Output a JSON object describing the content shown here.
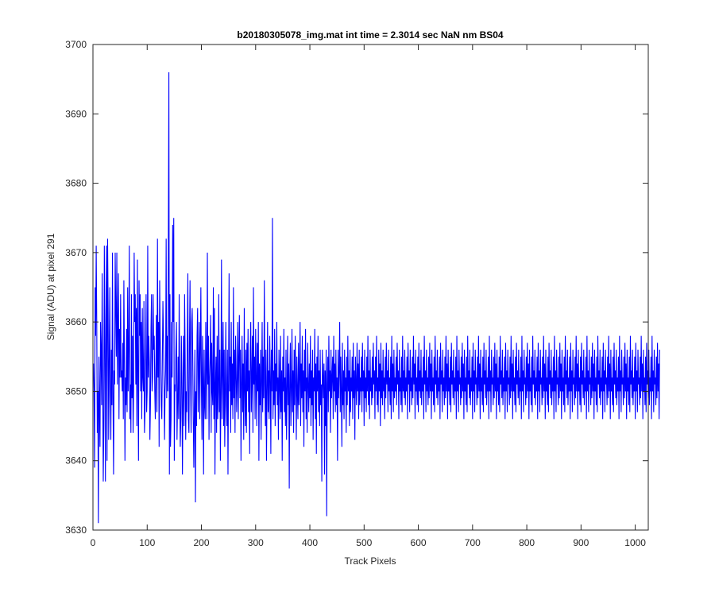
{
  "chart_data": {
    "type": "line",
    "title": "b20180305078_img.mat int time = 2.3014 sec  NaN nm BS04",
    "xlabel": "Track Pixels",
    "ylabel": "Signal (ADU) at pixel 291",
    "xlim": [
      0,
      1024
    ],
    "ylim": [
      3630,
      3700
    ],
    "xticks": [
      0,
      100,
      200,
      300,
      400,
      500,
      600,
      700,
      800,
      900,
      1000
    ],
    "yticks": [
      3630,
      3640,
      3650,
      3660,
      3670,
      3680,
      3690,
      3700
    ],
    "grid": false,
    "legend": "none",
    "line_color": "#0000ff",
    "series": [
      {
        "x_start": 1,
        "x_step": 1,
        "values": [
          3654,
          3650,
          3639,
          3665,
          3658,
          3671,
          3660,
          3644,
          3650,
          3631,
          3655,
          3648,
          3642,
          3660,
          3656,
          3648,
          3667,
          3651,
          3637,
          3645,
          3671,
          3656,
          3637,
          3660,
          3671,
          3640,
          3672,
          3662,
          3643,
          3654,
          3665,
          3650,
          3643,
          3656,
          3648,
          3670,
          3649,
          3638,
          3653,
          3651,
          3670,
          3662,
          3655,
          3670,
          3651,
          3660,
          3667,
          3646,
          3659,
          3652,
          3664,
          3652,
          3653,
          3650,
          3657,
          3646,
          3666,
          3655,
          3640,
          3652,
          3648,
          3659,
          3647,
          3665,
          3650,
          3656,
          3671,
          3646,
          3651,
          3644,
          3664,
          3649,
          3658,
          3644,
          3650,
          3670,
          3660,
          3664,
          3651,
          3662,
          3645,
          3669,
          3652,
          3640,
          3666,
          3658,
          3664,
          3650,
          3660,
          3646,
          3662,
          3652,
          3650,
          3663,
          3644,
          3647,
          3655,
          3664,
          3647,
          3650,
          3671,
          3652,
          3658,
          3654,
          3643,
          3648,
          3659,
          3664,
          3650,
          3652,
          3664,
          3656,
          3658,
          3650,
          3646,
          3653,
          3661,
          3647,
          3672,
          3652,
          3660,
          3642,
          3666,
          3658,
          3654,
          3648,
          3646,
          3655,
          3663,
          3658,
          3652,
          3643,
          3650,
          3653,
          3672,
          3649,
          3658,
          3650,
          3669,
          3696,
          3638,
          3664,
          3642,
          3646,
          3660,
          3652,
          3674,
          3660,
          3675,
          3640,
          3651,
          3650,
          3656,
          3660,
          3643,
          3648,
          3655,
          3646,
          3664,
          3650,
          3642,
          3646,
          3658,
          3652,
          3638,
          3649,
          3658,
          3645,
          3664,
          3655,
          3643,
          3650,
          3647,
          3658,
          3667,
          3646,
          3644,
          3657,
          3666,
          3651,
          3644,
          3660,
          3662,
          3655,
          3646,
          3639,
          3648,
          3656,
          3634,
          3650,
          3645,
          3658,
          3662,
          3647,
          3653,
          3660,
          3646,
          3656,
          3665,
          3651,
          3643,
          3658,
          3652,
          3638,
          3656,
          3648,
          3646,
          3660,
          3654,
          3646,
          3670,
          3651,
          3658,
          3643,
          3652,
          3655,
          3661,
          3644,
          3657,
          3650,
          3648,
          3665,
          3646,
          3662,
          3638,
          3651,
          3655,
          3644,
          3658,
          3646,
          3650,
          3664,
          3647,
          3656,
          3640,
          3650,
          3669,
          3646,
          3653,
          3660,
          3645,
          3656,
          3642,
          3650,
          3660,
          3648,
          3645,
          3656,
          3638,
          3652,
          3667,
          3650,
          3655,
          3644,
          3660,
          3648,
          3654,
          3646,
          3665,
          3649,
          3656,
          3644,
          3658,
          3653,
          3647,
          3652,
          3660,
          3646,
          3655,
          3661,
          3649,
          3656,
          3640,
          3651,
          3658,
          3647,
          3654,
          3643,
          3662,
          3650,
          3645,
          3656,
          3644,
          3657,
          3650,
          3659,
          3647,
          3653,
          3641,
          3656,
          3660,
          3647,
          3652,
          3658,
          3644,
          3665,
          3651,
          3655,
          3646,
          3659,
          3652,
          3645,
          3657,
          3650,
          3660,
          3640,
          3654,
          3648,
          3656,
          3643,
          3651,
          3660,
          3647,
          3655,
          3649,
          3666,
          3651,
          3645,
          3656,
          3640,
          3650,
          3660,
          3647,
          3653,
          3646,
          3658,
          3652,
          3641,
          3656,
          3650,
          3675,
          3646,
          3653,
          3648,
          3659,
          3645,
          3654,
          3650,
          3660,
          3648,
          3652,
          3643,
          3656,
          3651,
          3646,
          3658,
          3647,
          3653,
          3640,
          3655,
          3650,
          3659,
          3647,
          3652,
          3645,
          3656,
          3643,
          3650,
          3658,
          3648,
          3654,
          3636,
          3652,
          3657,
          3645,
          3650,
          3659,
          3647,
          3653,
          3644,
          3656,
          3648,
          3658,
          3651,
          3643,
          3655,
          3650,
          3646,
          3657,
          3648,
          3652,
          3660,
          3645,
          3654,
          3649,
          3658,
          3647,
          3653,
          3642,
          3656,
          3650,
          3659,
          3646,
          3652,
          3644,
          3657,
          3651,
          3647,
          3654,
          3649,
          3658,
          3645,
          3653,
          3648,
          3656,
          3643,
          3652,
          3650,
          3659,
          3646,
          3654,
          3641,
          3655,
          3650,
          3658,
          3647,
          3653,
          3645,
          3656,
          3648,
          3651,
          3637,
          3656,
          3652,
          3649,
          3654,
          3638,
          3653,
          3645,
          3656,
          3632,
          3651,
          3655,
          3647,
          3658,
          3650,
          3653,
          3644,
          3656,
          3649,
          3652,
          3655,
          3646,
          3658,
          3650,
          3654,
          3647,
          3656,
          3648,
          3652,
          3640,
          3656,
          3649,
          3653,
          3660,
          3647,
          3655,
          3650,
          3642,
          3657,
          3648,
          3653,
          3646,
          3656,
          3650,
          3652,
          3644,
          3655,
          3648,
          3658,
          3650,
          3653,
          3645,
          3656,
          3647,
          3652,
          3650,
          3655,
          3646,
          3657,
          3649,
          3653,
          3643,
          3655,
          3651,
          3648,
          3657,
          3650,
          3654,
          3646,
          3656,
          3648,
          3652,
          3650,
          3655,
          3647,
          3657,
          3650,
          3653,
          3645,
          3656,
          3649,
          3652,
          3647,
          3655,
          3650,
          3658,
          3648,
          3653,
          3646,
          3656,
          3650,
          3652,
          3648,
          3655,
          3649,
          3657,
          3651,
          3653,
          3646,
          3655,
          3650,
          3658,
          3648,
          3652,
          3647,
          3656,
          3650,
          3654,
          3645,
          3657,
          3649,
          3653,
          3648,
          3656,
          3650,
          3652,
          3646,
          3655,
          3649,
          3657,
          3651,
          3653,
          3647,
          3656,
          3650,
          3652,
          3648,
          3655,
          3646,
          3658,
          3650,
          3654,
          3647,
          3656,
          3649,
          3652,
          3650,
          3655,
          3648,
          3657,
          3651,
          3653,
          3646,
          3656,
          3650,
          3652,
          3648,
          3655,
          3647,
          3658,
          3650,
          3653,
          3649,
          3656,
          3648,
          3652,
          3650,
          3655,
          3646,
          3657,
          3651,
          3653,
          3647,
          3656,
          3650,
          3652,
          3648,
          3655,
          3649,
          3658,
          3651,
          3654,
          3646,
          3656,
          3650,
          3652,
          3648,
          3655,
          3647,
          3657,
          3650,
          3653,
          3649,
          3656,
          3648,
          3652,
          3650,
          3655,
          3646,
          3658,
          3651,
          3653,
          3647,
          3656,
          3650,
          3652,
          3648,
          3655,
          3649,
          3657,
          3650,
          3654,
          3646,
          3656,
          3650,
          3652,
          3648,
          3655,
          3647,
          3658,
          3651,
          3653,
          3649,
          3656,
          3648,
          3652,
          3650,
          3655,
          3646,
          3657,
          3651,
          3653,
          3647,
          3656,
          3650,
          3652,
          3648,
          3655,
          3649,
          3658,
          3650,
          3654,
          3646,
          3656,
          3650,
          3652,
          3648,
          3655,
          3647,
          3657,
          3651,
          3653,
          3649,
          3656,
          3648,
          3652,
          3650,
          3655,
          3646,
          3658,
          3650,
          3653,
          3647,
          3656,
          3651,
          3652,
          3648,
          3655,
          3649,
          3657,
          3650,
          3654,
          3646,
          3656,
          3650,
          3652,
          3648,
          3655,
          3647,
          3658,
          3651,
          3653,
          3649,
          3656,
          3648,
          3652,
          3650,
          3655,
          3646,
          3657,
          3650,
          3653,
          3647,
          3656,
          3651,
          3652,
          3648,
          3655,
          3649,
          3658,
          3650,
          3654,
          3646,
          3656,
          3650,
          3652,
          3648,
          3655,
          3647,
          3657,
          3651,
          3653,
          3649,
          3656,
          3648,
          3652,
          3650,
          3655,
          3646,
          3658,
          3650,
          3653,
          3647,
          3656,
          3651,
          3652,
          3648,
          3655,
          3649,
          3657,
          3650,
          3654,
          3646,
          3656,
          3650,
          3652,
          3648,
          3655,
          3647,
          3658,
          3651,
          3653,
          3649,
          3656,
          3648,
          3652,
          3650,
          3655,
          3646,
          3657,
          3650,
          3653,
          3647,
          3656,
          3651,
          3652,
          3648,
          3655,
          3649,
          3658,
          3650,
          3654,
          3646,
          3656,
          3650,
          3652,
          3648,
          3655,
          3647,
          3657,
          3651,
          3653,
          3649,
          3656,
          3648,
          3652,
          3650,
          3655,
          3646,
          3658,
          3650,
          3653,
          3647,
          3656,
          3651,
          3652,
          3648,
          3655,
          3649,
          3657,
          3650,
          3654,
          3646,
          3656,
          3650,
          3652,
          3648,
          3655,
          3647,
          3658,
          3651,
          3653,
          3649,
          3656,
          3648,
          3652,
          3650,
          3655,
          3646,
          3657,
          3650,
          3653,
          3647,
          3656,
          3651,
          3652,
          3648,
          3655,
          3649,
          3658,
          3650,
          3654,
          3646,
          3656,
          3650,
          3652,
          3648,
          3655,
          3647,
          3657,
          3651,
          3653,
          3649,
          3656,
          3648,
          3652,
          3650,
          3655,
          3646,
          3658,
          3650,
          3653,
          3647,
          3656,
          3651,
          3652,
          3648,
          3655,
          3649,
          3657,
          3650,
          3654,
          3646,
          3656,
          3650,
          3652,
          3648,
          3655,
          3647,
          3658,
          3651,
          3653,
          3649,
          3656,
          3648,
          3652,
          3650,
          3655,
          3646,
          3657,
          3650,
          3653,
          3647,
          3656,
          3651,
          3652,
          3648,
          3655,
          3649,
          3658,
          3650,
          3654,
          3646,
          3656,
          3650,
          3652,
          3648,
          3655,
          3647,
          3657,
          3651,
          3653,
          3649,
          3656,
          3648,
          3652,
          3650,
          3655,
          3646,
          3658,
          3650,
          3653,
          3647,
          3656,
          3651,
          3652,
          3648,
          3655,
          3649,
          3657,
          3650,
          3654,
          3646,
          3656,
          3650,
          3652,
          3648,
          3655,
          3647,
          3658,
          3651,
          3653,
          3649,
          3656,
          3648,
          3652,
          3650,
          3655,
          3646,
          3657,
          3650,
          3653,
          3647,
          3656,
          3651,
          3652,
          3648,
          3655,
          3649,
          3658,
          3650,
          3654,
          3646,
          3656,
          3650,
          3652,
          3648,
          3655,
          3647,
          3657,
          3651,
          3653,
          3649,
          3656,
          3648,
          3652,
          3650,
          3655,
          3646,
          3658,
          3650,
          3653,
          3647,
          3656,
          3651,
          3652,
          3648,
          3655,
          3649,
          3657,
          3650,
          3654,
          3646,
          3656,
          3650,
          3652,
          3648,
          3655,
          3647,
          3658,
          3651,
          3653,
          3649,
          3656,
          3648,
          3652,
          3650,
          3655,
          3646,
          3657,
          3650,
          3653,
          3647,
          3656,
          3651,
          3652,
          3648,
          3655,
          3649,
          3658,
          3650,
          3654,
          3646,
          3656,
          3650,
          3652,
          3648,
          3655,
          3647,
          3657,
          3651,
          3653,
          3649,
          3656,
          3648,
          3652,
          3650,
          3655,
          3646,
          3658,
          3650,
          3653,
          3647,
          3656,
          3651,
          3652,
          3648,
          3655,
          3649,
          3657,
          3650,
          3654,
          3646,
          3656
        ]
      }
    ]
  }
}
